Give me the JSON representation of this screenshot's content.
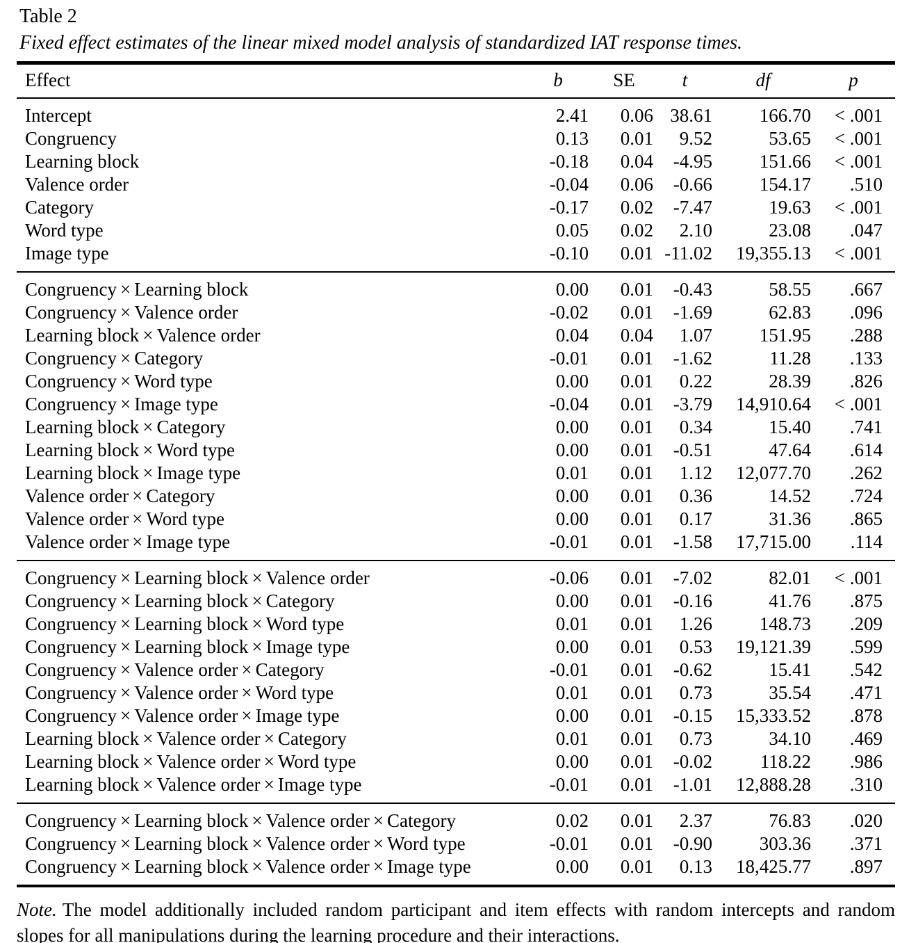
{
  "table": {
    "label": "Table 2",
    "caption": "Fixed effect estimates of the linear mixed model analysis of standardized IAT response times.",
    "columns": [
      "Effect",
      "b",
      "SE",
      "t",
      "df",
      "p"
    ],
    "groups": [
      {
        "rows": [
          [
            "Intercept",
            "2.41",
            "0.06",
            "38.61",
            "166.70",
            "< .001"
          ],
          [
            "Congruency",
            "0.13",
            "0.01",
            "9.52",
            "53.65",
            "< .001"
          ],
          [
            "Learning block",
            "-0.18",
            "0.04",
            "-4.95",
            "151.66",
            "< .001"
          ],
          [
            "Valence order",
            "-0.04",
            "0.06",
            "-0.66",
            "154.17",
            ".510"
          ],
          [
            "Category",
            "-0.17",
            "0.02",
            "-7.47",
            "19.63",
            "< .001"
          ],
          [
            "Word type",
            "0.05",
            "0.02",
            "2.10",
            "23.08",
            ".047"
          ],
          [
            "Image type",
            "-0.10",
            "0.01",
            "-11.02",
            "19,355.13",
            "< .001"
          ]
        ]
      },
      {
        "rows": [
          [
            "Congruency × Learning block",
            "0.00",
            "0.01",
            "-0.43",
            "58.55",
            ".667"
          ],
          [
            "Congruency × Valence order",
            "-0.02",
            "0.01",
            "-1.69",
            "62.83",
            ".096"
          ],
          [
            "Learning block × Valence order",
            "0.04",
            "0.04",
            "1.07",
            "151.95",
            ".288"
          ],
          [
            "Congruency × Category",
            "-0.01",
            "0.01",
            "-1.62",
            "11.28",
            ".133"
          ],
          [
            "Congruency × Word type",
            "0.00",
            "0.01",
            "0.22",
            "28.39",
            ".826"
          ],
          [
            "Congruency × Image type",
            "-0.04",
            "0.01",
            "-3.79",
            "14,910.64",
            "< .001"
          ],
          [
            "Learning block × Category",
            "0.00",
            "0.01",
            "0.34",
            "15.40",
            ".741"
          ],
          [
            "Learning block × Word type",
            "0.00",
            "0.01",
            "-0.51",
            "47.64",
            ".614"
          ],
          [
            "Learning block × Image type",
            "0.01",
            "0.01",
            "1.12",
            "12,077.70",
            ".262"
          ],
          [
            "Valence order × Category",
            "0.00",
            "0.01",
            "0.36",
            "14.52",
            ".724"
          ],
          [
            "Valence order × Word type",
            "0.00",
            "0.01",
            "0.17",
            "31.36",
            ".865"
          ],
          [
            "Valence order × Image type",
            "-0.01",
            "0.01",
            "-1.58",
            "17,715.00",
            ".114"
          ]
        ]
      },
      {
        "rows": [
          [
            "Congruency × Learning block × Valence order",
            "-0.06",
            "0.01",
            "-7.02",
            "82.01",
            "< .001"
          ],
          [
            "Congruency × Learning block × Category",
            "0.00",
            "0.01",
            "-0.16",
            "41.76",
            ".875"
          ],
          [
            "Congruency × Learning block × Word type",
            "0.01",
            "0.01",
            "1.26",
            "148.73",
            ".209"
          ],
          [
            "Congruency × Learning block × Image type",
            "0.00",
            "0.01",
            "0.53",
            "19,121.39",
            ".599"
          ],
          [
            "Congruency × Valence order × Category",
            "-0.01",
            "0.01",
            "-0.62",
            "15.41",
            ".542"
          ],
          [
            "Congruency × Valence order × Word type",
            "0.01",
            "0.01",
            "0.73",
            "35.54",
            ".471"
          ],
          [
            "Congruency × Valence order × Image type",
            "0.00",
            "0.01",
            "-0.15",
            "15,333.52",
            ".878"
          ],
          [
            "Learning block × Valence order × Category",
            "0.01",
            "0.01",
            "0.73",
            "34.10",
            ".469"
          ],
          [
            "Learning block × Valence order × Word type",
            "0.00",
            "0.01",
            "-0.02",
            "118.22",
            ".986"
          ],
          [
            "Learning block × Valence order × Image type",
            "-0.01",
            "0.01",
            "-1.01",
            "12,888.28",
            ".310"
          ]
        ]
      },
      {
        "rows": [
          [
            "Congruency × Learning block × Valence order × Category",
            "0.02",
            "0.01",
            "2.37",
            "76.83",
            ".020"
          ],
          [
            "Congruency × Learning block × Valence order × Word type",
            "-0.01",
            "0.01",
            "-0.90",
            "303.36",
            ".371"
          ],
          [
            "Congruency × Learning block × Valence order × Image type",
            "0.00",
            "0.01",
            "0.13",
            "18,425.77",
            ".897"
          ]
        ]
      }
    ],
    "note_label": "Note.",
    "note_text": "The model additionally included random participant and item effects with random intercepts and random slopes for all manipulations during the learning procedure and their interactions."
  },
  "colors": {
    "text": "#000000",
    "background": "#ffffff",
    "rule": "#000000"
  }
}
